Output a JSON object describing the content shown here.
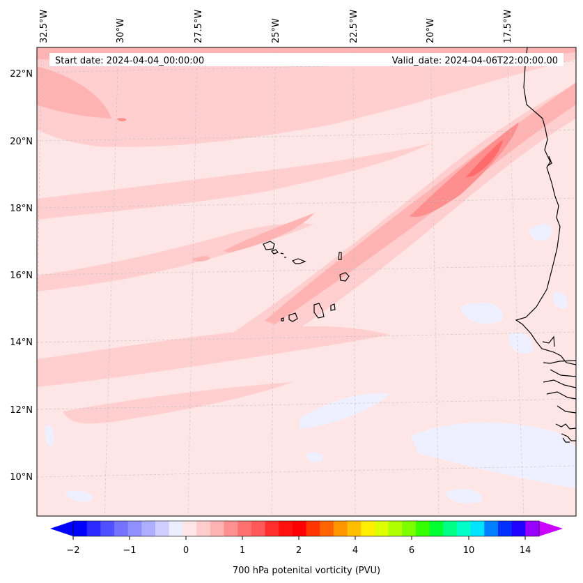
{
  "header": {
    "start_label": "Start date: 2024-04-04_00:00:00",
    "valid_label": "Valid_date: 2024-04-06T22:00:00.00"
  },
  "map": {
    "region": "Cape Verde islands and West African coast (Senegal / Mauritania)",
    "lon_labels": [
      "32.5°W",
      "30°W",
      "27.5°W",
      "25°W",
      "22.5°W",
      "20°W",
      "17.5°W"
    ],
    "lat_labels": [
      "22°N",
      "20°N",
      "18°N",
      "16°N",
      "14°N",
      "12°N",
      "10°N"
    ]
  },
  "colorbar": {
    "title": "700 hPa potenital vorticity (PVU)",
    "tick_labels": [
      "−2",
      "−1",
      "0",
      "1",
      "2",
      "4",
      "6",
      "10",
      "14"
    ],
    "colors": [
      "#0000ff",
      "#2a2aff",
      "#5050ff",
      "#7373ff",
      "#8f8fff",
      "#aeaeff",
      "#cfcfff",
      "#ededff",
      "#ffe5e5",
      "#ffcccc",
      "#ffb2b2",
      "#ff9090",
      "#ff7070",
      "#ff5858",
      "#ff2e2e",
      "#ff1010",
      "#ff0000",
      "#ff3500",
      "#ff6400",
      "#ff9500",
      "#ffbf00",
      "#ffee00",
      "#ddff00",
      "#b0ff00",
      "#7cff00",
      "#33ff00",
      "#00ff30",
      "#00ff85",
      "#00ffc8",
      "#00e4ff",
      "#0080ff",
      "#0030ff",
      "#2000ff",
      "#9800ff"
    ],
    "under_color": "#0000ff",
    "over_color": "#cc00ff"
  },
  "pv_colors": {
    "background": "#ffe6e6",
    "light_blue": "#eef0ff",
    "level1": "#ffcfcf",
    "level2": "#ffb3b3",
    "level3": "#ff8f8f",
    "level4": "#ff6b6b"
  }
}
